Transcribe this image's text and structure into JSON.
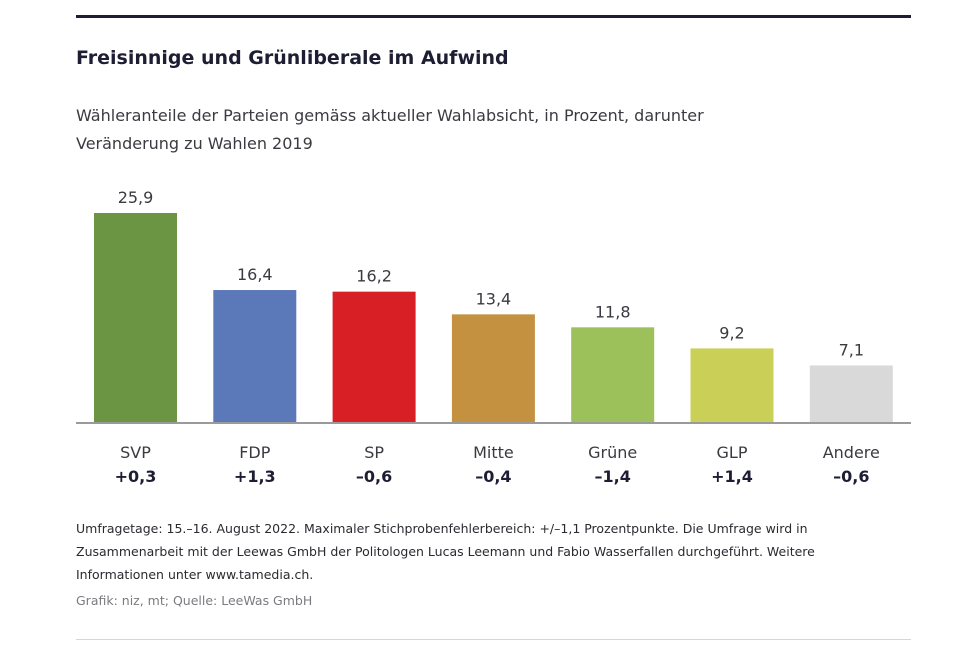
{
  "header": {
    "title": "Freisinnige und Grünliberale im Aufwind",
    "subtitle": "Wähleranteile der Parteien gemäss aktueller Wahlabsicht, in Prozent, darunter Veränderung zu Wahlen 2019"
  },
  "chart_data": {
    "type": "bar",
    "categories": [
      "SVP",
      "FDP",
      "SP",
      "Mitte",
      "Grüne",
      "GLP",
      "Andere"
    ],
    "values": [
      25.9,
      16.4,
      16.2,
      13.4,
      11.8,
      9.2,
      7.1
    ],
    "value_labels": [
      "25,9",
      "16,4",
      "16,2",
      "13,4",
      "11,8",
      "9,2",
      "7,1"
    ],
    "changes": [
      "+0,3",
      "+1,3",
      "–0,6",
      "–0,4",
      "–1,4",
      "+1,4",
      "–0,6"
    ],
    "colors": [
      "#6b9443",
      "#5b78b8",
      "#d81f26",
      "#c49140",
      "#9cc05a",
      "#c9cf57",
      "#d9d9d9"
    ],
    "ylim": [
      0,
      25.9
    ],
    "grid": false,
    "xlabel": "",
    "ylabel": ""
  },
  "footer": {
    "note": "Umfragetage: 15.–16. August 2022. Maximaler Stichprobenfehlerbereich: +/–1,1 Prozentpunkte. Die Umfrage wird in Zusammenarbeit mit der Leewas GmbH der Politologen Lucas Leemann und Fabio Wasserfallen durchgeführt. Weitere Informationen unter www.tamedia.ch.",
    "source": "Grafik: niz, mt; Quelle: LeeWas GmbH"
  }
}
